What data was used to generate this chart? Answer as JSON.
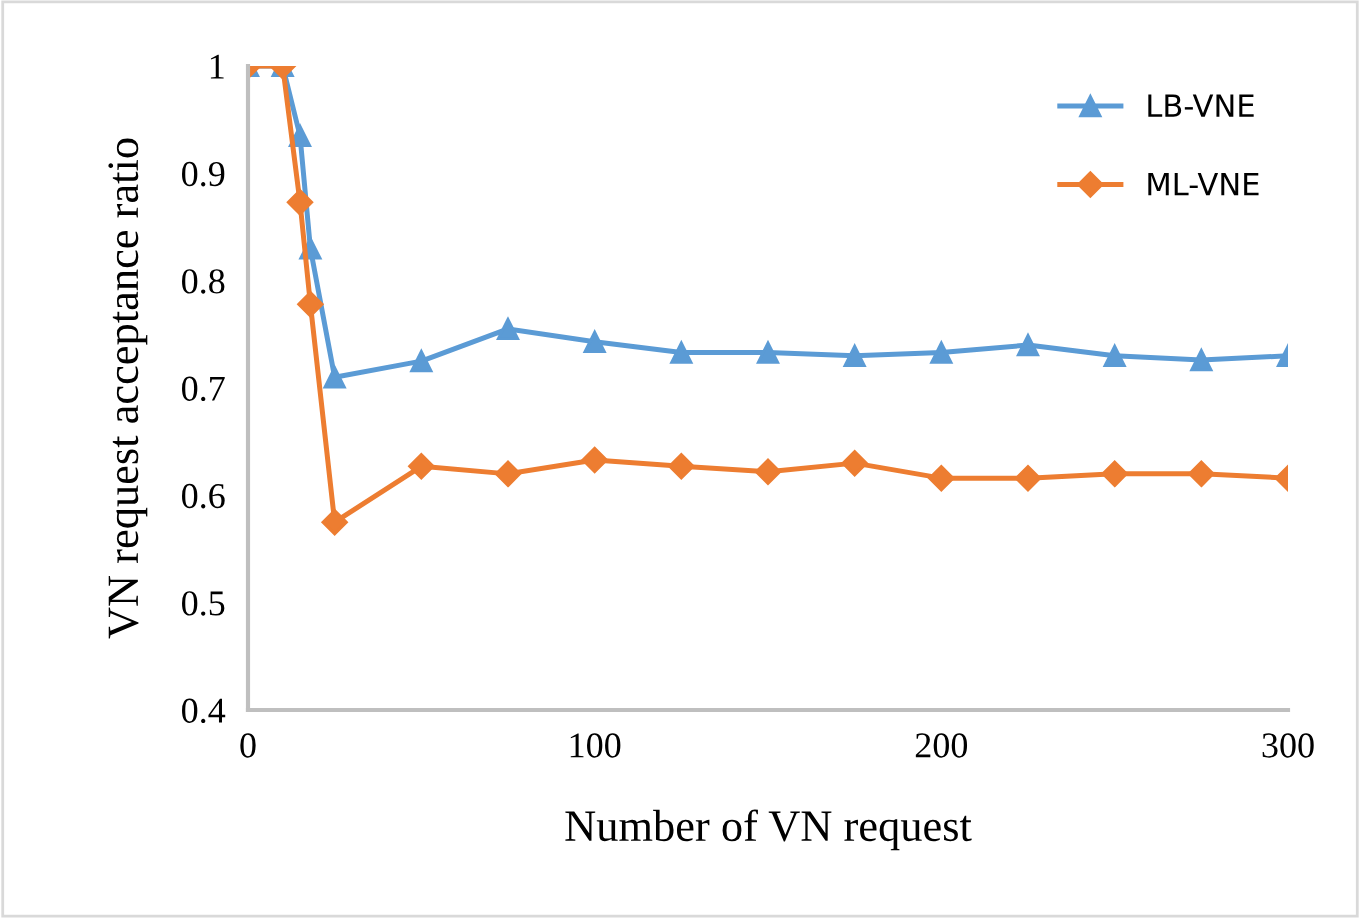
{
  "chart_data": {
    "type": "line",
    "xlabel": "Number of VN request",
    "ylabel": "VN request acceptance ratio",
    "x": [
      0,
      10,
      15,
      18,
      25,
      50,
      75,
      100,
      125,
      150,
      175,
      200,
      225,
      250,
      275,
      300
    ],
    "series": [
      {
        "name": "LB-VNE",
        "color": "#5b9bd5",
        "marker": "triangle",
        "values": [
          1.0,
          1.0,
          0.935,
          0.83,
          0.71,
          0.725,
          0.755,
          0.743,
          0.733,
          0.733,
          0.73,
          0.733,
          0.74,
          0.73,
          0.726,
          0.73
        ]
      },
      {
        "name": "ML-VNE",
        "color": "#ed7d31",
        "marker": "diamond",
        "values": [
          1.0,
          1.0,
          0.873,
          0.778,
          0.575,
          0.627,
          0.62,
          0.633,
          0.627,
          0.622,
          0.63,
          0.616,
          0.616,
          0.62,
          0.62,
          0.616
        ]
      }
    ],
    "xlim": [
      0,
      300
    ],
    "xticks": [
      0,
      100,
      200,
      300
    ],
    "ylim": [
      0.4,
      1
    ],
    "yticks": [
      0.4,
      0.5,
      0.6,
      0.7,
      0.8,
      0.9,
      {
        "value": 1,
        "label": "1"
      }
    ],
    "grid": false,
    "legend": "top right",
    "line_style": "solid"
  }
}
